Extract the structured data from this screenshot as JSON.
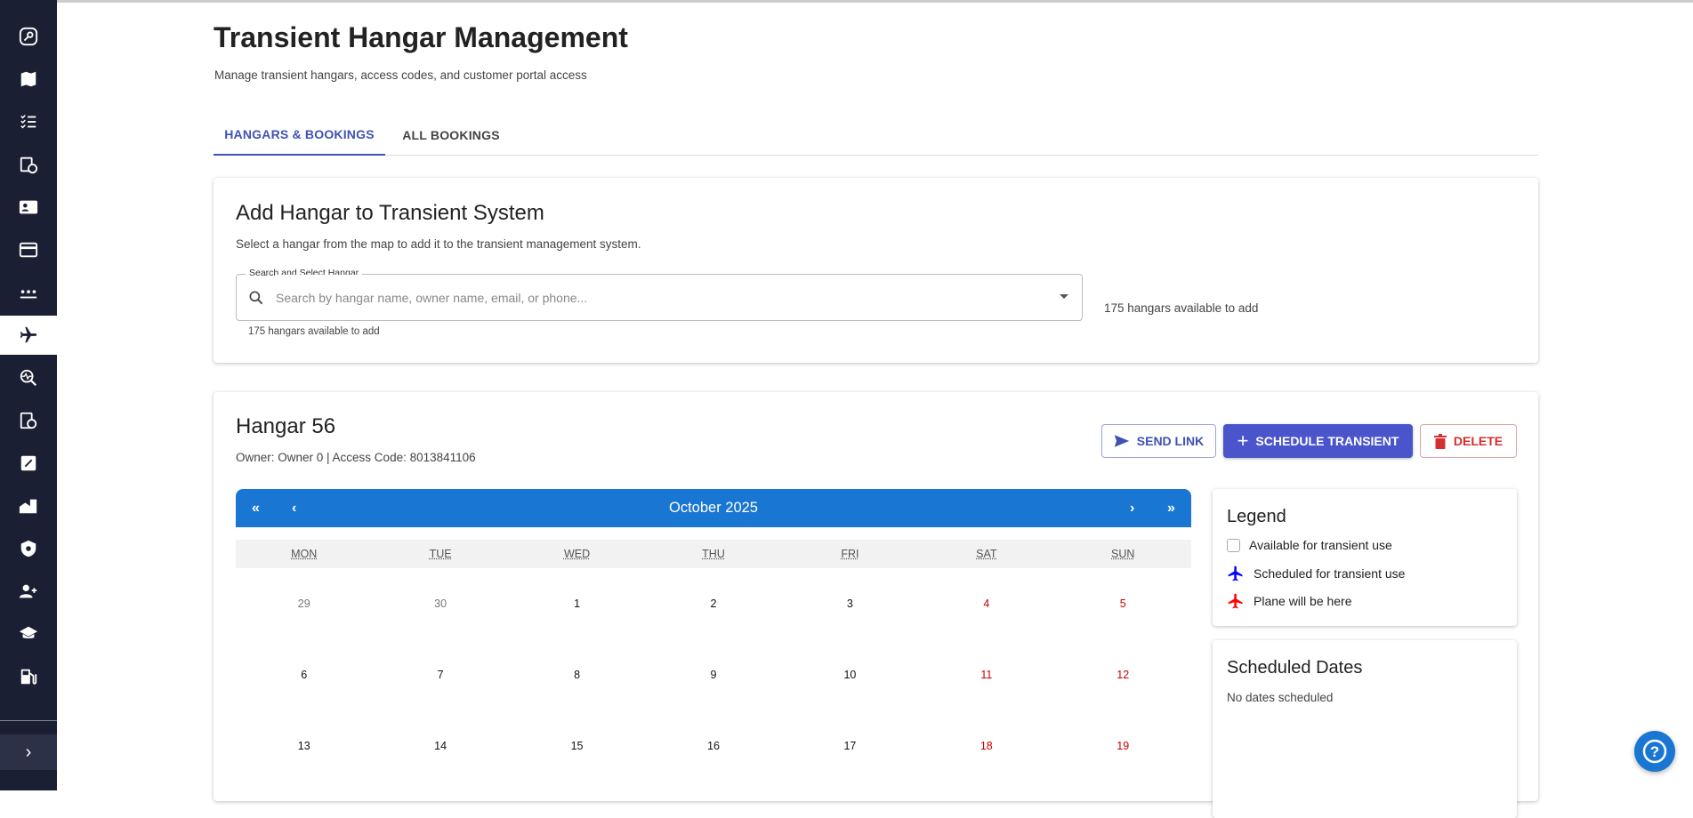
{
  "sidebar": {
    "items": [
      {
        "icon": "key-icon"
      },
      {
        "icon": "map-icon"
      },
      {
        "icon": "checklist-icon"
      },
      {
        "icon": "calendar-clock-icon"
      },
      {
        "icon": "contact-card-icon"
      },
      {
        "icon": "credit-card-icon"
      },
      {
        "icon": "password-icon"
      },
      {
        "icon": "airplane-icon",
        "active": true
      },
      {
        "icon": "search-activity-icon"
      },
      {
        "icon": "clipboard-block-icon"
      },
      {
        "icon": "edit-document-icon"
      },
      {
        "icon": "buildings-icon"
      },
      {
        "icon": "shield-icon"
      },
      {
        "icon": "add-user-icon"
      },
      {
        "icon": "school-icon"
      },
      {
        "icon": "fuel-icon"
      }
    ],
    "expand_label": "›"
  },
  "header": {
    "title": "Transient Hangar Management",
    "subtitle": "Manage transient hangars, access codes, and customer portal access"
  },
  "tabs": [
    {
      "label": "HANGARS & BOOKINGS",
      "active": true
    },
    {
      "label": "ALL BOOKINGS",
      "active": false
    }
  ],
  "add_hangar": {
    "title": "Add Hangar to Transient System",
    "description": "Select a hangar from the map to add it to the transient management system.",
    "search_label": "Search and Select Hangar",
    "search_placeholder": "Search by hangar name, owner name, email, or phone...",
    "search_value": "",
    "helper_text": "175 hangars available to add",
    "side_text": "175 hangars available to add"
  },
  "hangar": {
    "title": "Hangar 56",
    "details": "Owner: Owner 0 | Access Code: 8013841106",
    "send_link": "SEND LINK",
    "schedule": "SCHEDULE TRANSIENT",
    "delete": "DELETE"
  },
  "calendar": {
    "month": "October 2025",
    "nav": {
      "prev_year": "«",
      "prev": "‹",
      "next": "›",
      "next_year": "»"
    },
    "weekdays": [
      "MON",
      "TUE",
      "WED",
      "THU",
      "FRI",
      "SAT",
      "SUN"
    ],
    "weeks": [
      [
        "29",
        "30",
        "1",
        "2",
        "3",
        "4",
        "5"
      ],
      [
        "6",
        "7",
        "8",
        "9",
        "10",
        "11",
        "12"
      ],
      [
        "13",
        "14",
        "15",
        "16",
        "17",
        "18",
        "19"
      ]
    ]
  },
  "legend": {
    "title": "Legend",
    "items": [
      {
        "label": "Available for transient use"
      },
      {
        "label": "Scheduled for transient use",
        "color": "#0000ff"
      },
      {
        "label": "Plane will be here",
        "color": "#ff0000"
      }
    ]
  },
  "scheduled": {
    "title": "Scheduled Dates",
    "empty": "No dates scheduled"
  },
  "colors": {
    "primary": "#3f51b5",
    "calendar": "#1976d2",
    "danger": "#d32f2f",
    "sidebar": "#1b1f33"
  }
}
